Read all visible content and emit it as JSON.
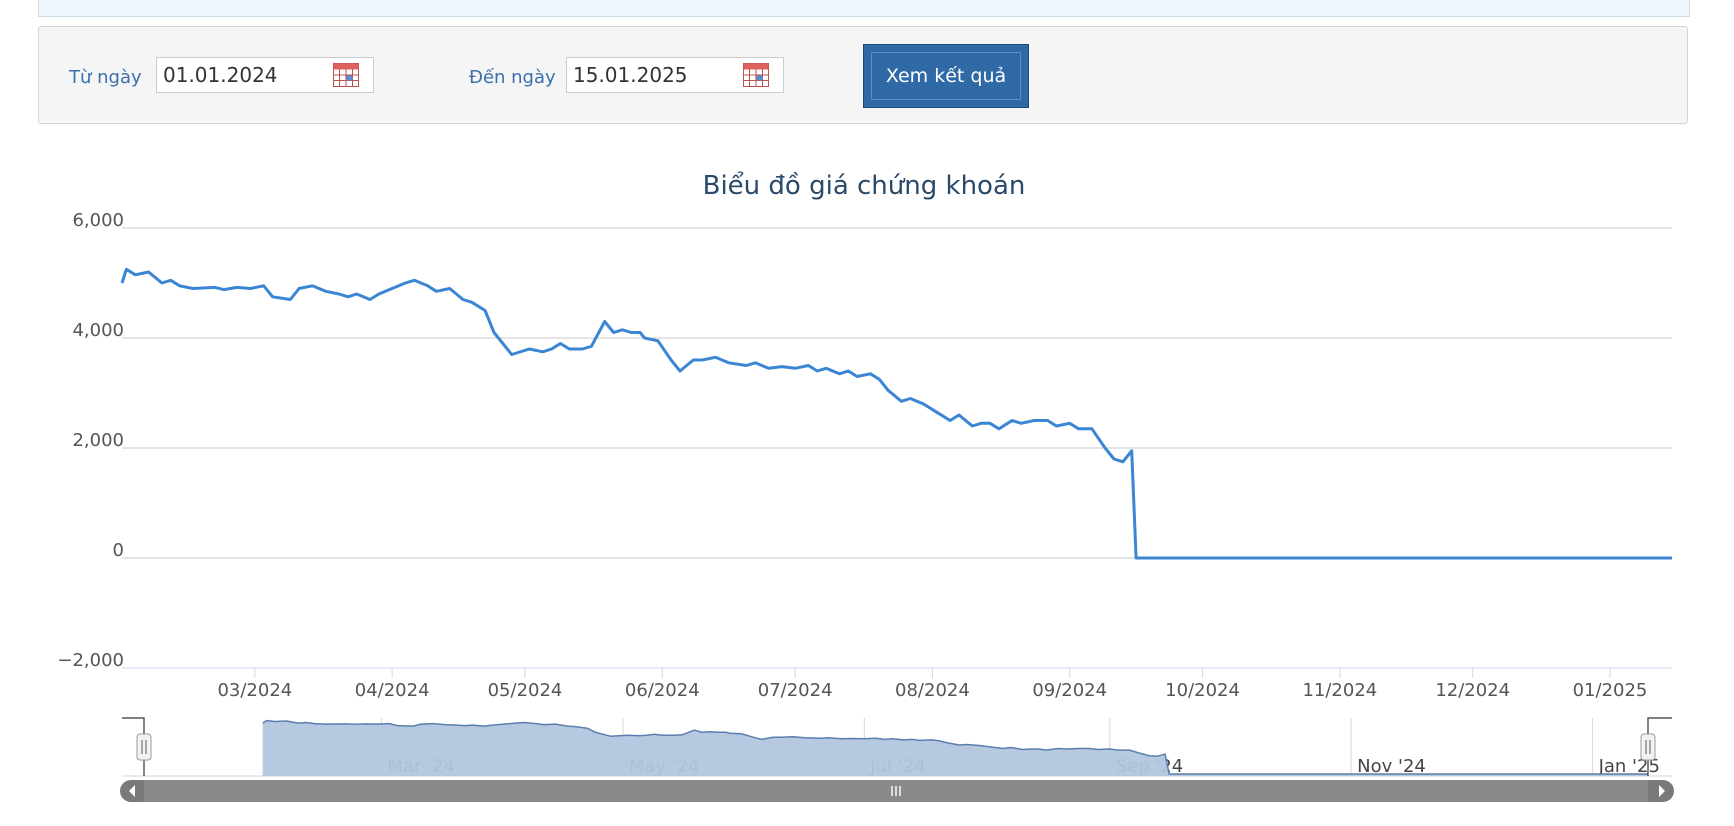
{
  "filter": {
    "from_label": "Từ ngày",
    "from_value": "01.01.2024",
    "to_label": "Đến ngày",
    "to_value": "15.01.2025",
    "submit_label": "Xem kết quả"
  },
  "colors": {
    "line": "#3a85d4",
    "navigator_fill": "#b3c6de",
    "navigator_line": "#5a7fae",
    "button": "#2f6aa7"
  },
  "chart_data": {
    "type": "line",
    "title": "Biểu đồ giá chứng khoán",
    "ylim": [
      -2000,
      6000
    ],
    "y_ticks": [
      -2000,
      0,
      2000,
      4000,
      6000
    ],
    "y_tick_labels": [
      "−2,000",
      "0",
      "2,000",
      "4,000",
      "6,000"
    ],
    "x_start": "2024-01-31",
    "x_end": "2025-01-15",
    "x_ticks": [
      {
        "date": "2024-03-01",
        "label": "03/2024"
      },
      {
        "date": "2024-04-01",
        "label": "04/2024"
      },
      {
        "date": "2024-05-01",
        "label": "05/2024"
      },
      {
        "date": "2024-06-01",
        "label": "06/2024"
      },
      {
        "date": "2024-07-01",
        "label": "07/2024"
      },
      {
        "date": "2024-08-01",
        "label": "08/2024"
      },
      {
        "date": "2024-09-01",
        "label": "09/2024"
      },
      {
        "date": "2024-10-01",
        "label": "10/2024"
      },
      {
        "date": "2024-11-01",
        "label": "11/2024"
      },
      {
        "date": "2024-12-01",
        "label": "12/2024"
      },
      {
        "date": "2025-01-01",
        "label": "01/2025"
      }
    ],
    "series": [
      {
        "x": [
          "2024-01-31",
          "2024-02-01",
          "2024-02-03",
          "2024-02-06",
          "2024-02-09",
          "2024-02-11",
          "2024-02-13",
          "2024-02-16",
          "2024-02-21",
          "2024-02-23",
          "2024-02-26",
          "2024-02-29",
          "2024-03-03",
          "2024-03-05",
          "2024-03-09",
          "2024-03-11",
          "2024-03-14",
          "2024-03-17",
          "2024-03-20",
          "2024-03-22",
          "2024-03-24",
          "2024-03-27",
          "2024-03-29",
          "2024-04-01",
          "2024-04-04",
          "2024-04-06",
          "2024-04-09",
          "2024-04-11",
          "2024-04-14",
          "2024-04-17",
          "2024-04-19",
          "2024-04-22",
          "2024-04-24",
          "2024-04-26",
          "2024-04-28",
          "2024-05-02",
          "2024-05-05",
          "2024-05-07",
          "2024-05-09",
          "2024-05-11",
          "2024-05-14",
          "2024-05-16",
          "2024-05-19",
          "2024-05-21",
          "2024-05-23",
          "2024-05-25",
          "2024-05-27",
          "2024-05-28",
          "2024-05-31",
          "2024-06-03",
          "2024-06-05",
          "2024-06-08",
          "2024-06-10",
          "2024-06-13",
          "2024-06-16",
          "2024-06-20",
          "2024-06-22",
          "2024-06-25",
          "2024-06-28",
          "2024-07-01",
          "2024-07-04",
          "2024-07-06",
          "2024-07-08",
          "2024-07-11",
          "2024-07-13",
          "2024-07-15",
          "2024-07-18",
          "2024-07-20",
          "2024-07-22",
          "2024-07-25",
          "2024-07-27",
          "2024-07-30",
          "2024-08-02",
          "2024-08-05",
          "2024-08-07",
          "2024-08-10",
          "2024-08-12",
          "2024-08-14",
          "2024-08-16",
          "2024-08-19",
          "2024-08-21",
          "2024-08-24",
          "2024-08-27",
          "2024-08-29",
          "2024-09-01",
          "2024-09-03",
          "2024-09-06",
          "2024-09-09",
          "2024-09-11",
          "2024-09-13",
          "2024-09-14",
          "2024-09-15",
          "2024-09-16",
          "2024-09-17",
          "2025-01-15"
        ],
        "values": [
          5000,
          5250,
          5150,
          5200,
          5000,
          5050,
          4950,
          4900,
          4920,
          4880,
          4920,
          4900,
          4950,
          4750,
          4700,
          4900,
          4950,
          4850,
          4800,
          4750,
          4800,
          4700,
          4800,
          4900,
          5000,
          5050,
          4950,
          4850,
          4900,
          4700,
          4650,
          4500,
          4100,
          3900,
          3700,
          3800,
          3750,
          3800,
          3900,
          3800,
          3800,
          3850,
          4300,
          4100,
          4150,
          4100,
          4100,
          4000,
          3950,
          3600,
          3400,
          3600,
          3600,
          3650,
          3550,
          3500,
          3550,
          3450,
          3480,
          3450,
          3500,
          3400,
          3450,
          3350,
          3400,
          3300,
          3350,
          3250,
          3050,
          2850,
          2900,
          2800,
          2650,
          2500,
          2600,
          2400,
          2450,
          2450,
          2350,
          2500,
          2450,
          2500,
          2500,
          2400,
          2450,
          2350,
          2350,
          2000,
          1800,
          1750,
          1850,
          1950,
          0,
          0,
          0
        ]
      }
    ],
    "navigator": {
      "type": "area",
      "x_start": "2024-01-01",
      "x_end": "2025-01-15",
      "x_ticks": [
        {
          "date": "2024-03-01",
          "label": "Mar '24"
        },
        {
          "date": "2024-05-01",
          "label": "May '24"
        },
        {
          "date": "2024-07-01",
          "label": "Jul '24"
        },
        {
          "date": "2024-09-01",
          "label": "Sep '24"
        },
        {
          "date": "2024-11-01",
          "label": "Nov '24"
        },
        {
          "date": "2025-01-01",
          "label": "Jan '25"
        }
      ]
    }
  }
}
